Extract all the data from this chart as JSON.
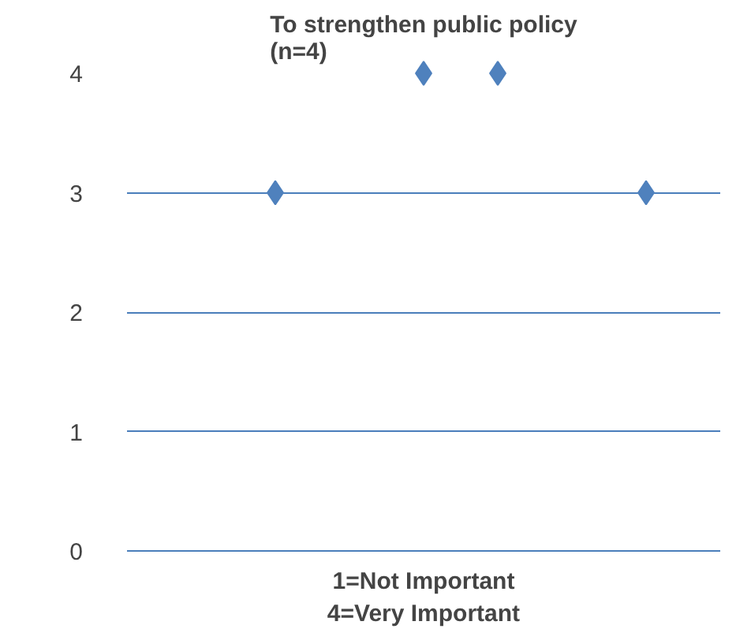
{
  "chart_data": {
    "type": "scatter",
    "title": "To strengthen public policy\n(n=4)",
    "xlabel": "1=Not Important\n4=Very Important",
    "categories": [
      null,
      null,
      null,
      null,
      null,
      null,
      null
    ],
    "values": [
      null,
      3,
      null,
      4,
      4,
      null,
      3
    ],
    "color": "#4f81bd",
    "marker": "diamond",
    "ylim": [
      0,
      4
    ],
    "yticks": [
      0,
      1,
      2,
      3,
      4
    ],
    "grid": "y",
    "tick_labels": "y"
  }
}
